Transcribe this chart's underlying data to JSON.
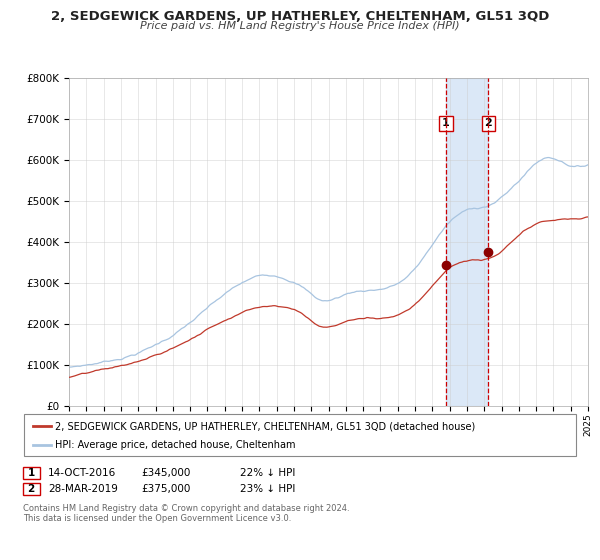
{
  "title_line1": "2, SEDGEWICK GARDENS, UP HATHERLEY, CHELTENHAM, GL51 3QD",
  "title_line2": "Price paid vs. HM Land Registry's House Price Index (HPI)",
  "x_start_year": 1995,
  "x_end_year": 2025,
  "y_min": 0,
  "y_max": 800000,
  "y_ticks": [
    0,
    100000,
    200000,
    300000,
    400000,
    500000,
    600000,
    700000,
    800000
  ],
  "y_tick_labels": [
    "£0",
    "£100K",
    "£200K",
    "£300K",
    "£400K",
    "£500K",
    "£600K",
    "£700K",
    "£800K"
  ],
  "hpi_color": "#a8c4e0",
  "price_color": "#c0392b",
  "marker_color": "#8b0000",
  "vline_color": "#cc0000",
  "shading_color": "#ccdff5",
  "purchase1_year": 2016.79,
  "purchase1_price": 345000,
  "purchase2_year": 2019.24,
  "purchase2_price": 375000,
  "legend_label_red": "2, SEDGEWICK GARDENS, UP HATHERLEY, CHELTENHAM, GL51 3QD (detached house)",
  "legend_label_blue": "HPI: Average price, detached house, Cheltenham",
  "annotation1_label": "1",
  "annotation1_date": "14-OCT-2016",
  "annotation1_price": "£345,000",
  "annotation1_hpi": "22% ↓ HPI",
  "annotation2_label": "2",
  "annotation2_date": "28-MAR-2019",
  "annotation2_price": "£375,000",
  "annotation2_hpi": "23% ↓ HPI",
  "footer1": "Contains HM Land Registry data © Crown copyright and database right 2024.",
  "footer2": "This data is licensed under the Open Government Licence v3.0.",
  "background_color": "#ffffff",
  "grid_color": "#cccccc"
}
